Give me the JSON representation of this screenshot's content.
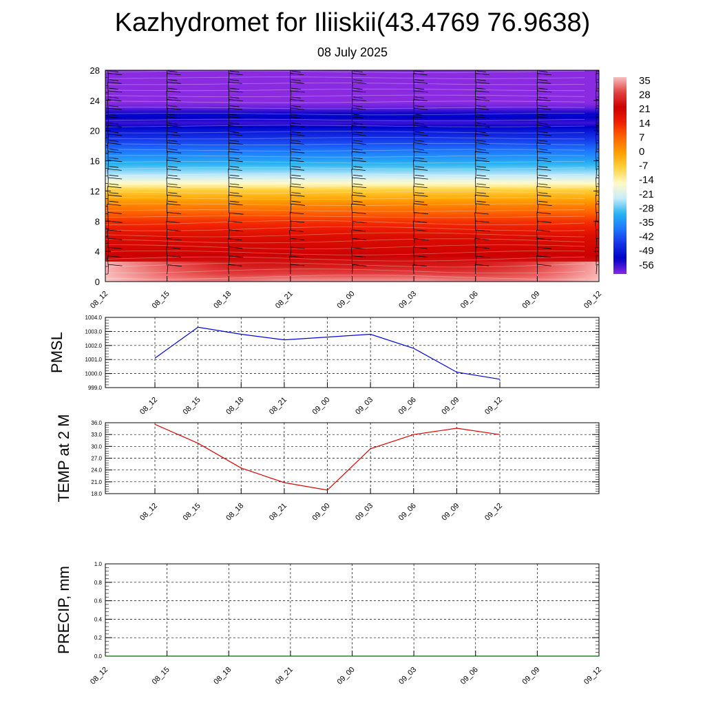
{
  "header": {
    "title": "Kazhydromet for Iliiskii(43.4769 76.9638)",
    "subtitle": "08 July 2025"
  },
  "time_labels": [
    "08_12",
    "08_15",
    "08_18",
    "08_21",
    "09_00",
    "09_03",
    "09_06",
    "09_09",
    "09_12"
  ],
  "chart_data": [
    {
      "type": "heatmap",
      "title": "",
      "xlabel": "",
      "ylabel": "",
      "x": [
        "08_12",
        "08_15",
        "08_18",
        "08_21",
        "09_00",
        "09_03",
        "09_06",
        "09_09",
        "09_12"
      ],
      "y_ticks": [
        0,
        4,
        8,
        12,
        16,
        20,
        24,
        28
      ],
      "ylim": [
        0,
        28
      ],
      "color_levels": [
        35,
        28,
        21,
        14,
        7,
        0,
        -7,
        -14,
        -21,
        -28,
        -35,
        -42,
        -49,
        -56
      ],
      "color_stops": [
        {
          "value": 35,
          "color": "#f8c0c0"
        },
        {
          "value": 28,
          "color": "#e24040"
        },
        {
          "value": 21,
          "color": "#cc0000"
        },
        {
          "value": 14,
          "color": "#f02000"
        },
        {
          "value": 7,
          "color": "#ff6600"
        },
        {
          "value": 0,
          "color": "#ffa000"
        },
        {
          "value": -7,
          "color": "#ffd23c"
        },
        {
          "value": -14,
          "color": "#fffac8"
        },
        {
          "value": -21,
          "color": "#c8ecfa"
        },
        {
          "value": -28,
          "color": "#28b4f0"
        },
        {
          "value": -35,
          "color": "#1e78ff"
        },
        {
          "value": -42,
          "color": "#1432e6"
        },
        {
          "value": -49,
          "color": "#0000c8"
        },
        {
          "value": -56,
          "color": "#8a2be2"
        }
      ],
      "temperature_profile": [
        {
          "level": 0,
          "value": 33
        },
        {
          "level": 1,
          "value": 28
        },
        {
          "level": 2,
          "value": 24
        },
        {
          "level": 3,
          "value": 22
        },
        {
          "level": 4,
          "value": 20
        },
        {
          "level": 6,
          "value": 18
        },
        {
          "level": 8,
          "value": 12
        },
        {
          "level": 10,
          "value": 4
        },
        {
          "level": 12,
          "value": -6
        },
        {
          "level": 13,
          "value": -14
        },
        {
          "level": 14,
          "value": -21
        },
        {
          "level": 16,
          "value": -30
        },
        {
          "level": 18,
          "value": -38
        },
        {
          "level": 20,
          "value": -46
        },
        {
          "level": 21,
          "value": -52
        },
        {
          "level": 22,
          "value": -48
        },
        {
          "level": 23,
          "value": -54
        },
        {
          "level": 24,
          "value": -57
        },
        {
          "level": 28,
          "value": -58
        }
      ],
      "wind_barbs": true
    },
    {
      "type": "line",
      "title": "",
      "ylabel": "PMSL",
      "x": [
        "08_12",
        "08_15",
        "08_18",
        "08_21",
        "09_00",
        "09_03",
        "09_06",
        "09_09",
        "09_12"
      ],
      "y_ticks": [
        "999.0",
        "1000.0",
        "1001.0",
        "1002.0",
        "1003.0",
        "1004.0"
      ],
      "ylim": [
        999.0,
        1004.0
      ],
      "grid": true,
      "series": [
        {
          "color": "#0000dd",
          "values": [
            1001.1,
            1003.3,
            1002.8,
            1002.4,
            1002.6,
            1002.8,
            1001.8,
            1000.1,
            999.6
          ]
        }
      ]
    },
    {
      "type": "line",
      "title": "",
      "ylabel": "TEMP at 2 M",
      "x": [
        "08_12",
        "08_15",
        "08_18",
        "08_21",
        "09_00",
        "09_03",
        "09_06",
        "09_09",
        "09_12"
      ],
      "y_ticks": [
        "18.0",
        "21.0",
        "24.0",
        "27.0",
        "30.0",
        "33.0",
        "36.0"
      ],
      "ylim": [
        18.0,
        36.0
      ],
      "grid": true,
      "series": [
        {
          "color": "#dd0000",
          "values": [
            35.6,
            30.8,
            24.5,
            20.8,
            18.9,
            29.4,
            33.0,
            34.6,
            33.0
          ]
        }
      ]
    },
    {
      "type": "line",
      "title": "",
      "ylabel": "PRECIP, mm",
      "x": [
        "08_12",
        "08_15",
        "08_18",
        "08_21",
        "09_00",
        "09_03",
        "09_06",
        "09_09",
        "09_12"
      ],
      "y_ticks": [
        "0.0",
        "0.2",
        "0.4",
        "0.6",
        "0.8",
        "1.0"
      ],
      "ylim": [
        0.0,
        1.0
      ],
      "grid": true,
      "series": [
        {
          "color": "#006400",
          "values": [
            0,
            0,
            0,
            0,
            0,
            0,
            0,
            0,
            0
          ]
        }
      ]
    }
  ]
}
